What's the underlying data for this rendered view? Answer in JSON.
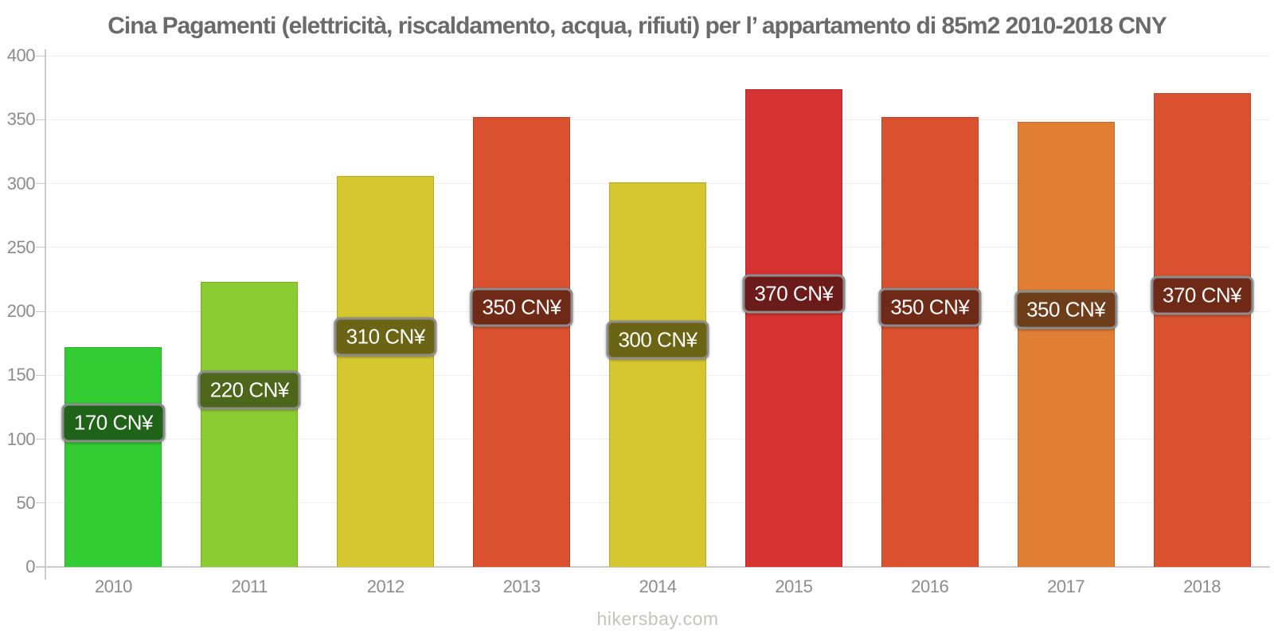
{
  "title": "Cina Pagamenti (elettricità, riscaldamento, acqua, rifiuti) per l’ appartamento di 85m2 2010-2018 CNY",
  "footer": "hikersbay.com",
  "chart_data": {
    "type": "bar",
    "title": "Cina Pagamenti (elettricità, riscaldamento, acqua, rifiuti) per l’ appartamento di 85m2 2010-2018 CNY",
    "categories": [
      "2010",
      "2011",
      "2012",
      "2013",
      "2014",
      "2015",
      "2016",
      "2017",
      "2018"
    ],
    "values": [
      172,
      223,
      306,
      352,
      301,
      374,
      352,
      348,
      371
    ],
    "labeled_values": [
      170,
      220,
      310,
      350,
      300,
      370,
      350,
      350,
      370
    ],
    "bar_labels": [
      "170 CN¥",
      "220 CN¥",
      "310 CN¥",
      "350 CN¥",
      "300 CN¥",
      "370 CN¥",
      "350 CN¥",
      "350 CN¥",
      "370 CN¥"
    ],
    "bar_colors": [
      "#33cc33",
      "#8ccc33",
      "#d6c730",
      "#d9512e",
      "#d6c730",
      "#d63231",
      "#d9512e",
      "#e07e33",
      "#d9512e"
    ],
    "value_label_bg_colors": [
      "#1e6318",
      "#4d661a",
      "#6b6414",
      "#6e2a17",
      "#6b6414",
      "#6b1c1a",
      "#6e2a17",
      "#6e3d1a",
      "#6e2a17"
    ],
    "value_label_border_color": "#8d8d8d",
    "xlabel": "",
    "ylabel": "",
    "ylim": [
      0,
      400
    ],
    "yticks": [
      0,
      50,
      100,
      150,
      200,
      250,
      300,
      350,
      400
    ],
    "grid": "horizontal-light",
    "legend": "none",
    "axis_color": "#cbcbcb",
    "gridline_color": "#efefef",
    "tick_label_color": "#8c8c8c",
    "title_color": "#6a6a6a",
    "watermark_color": "#c3c3c0"
  }
}
